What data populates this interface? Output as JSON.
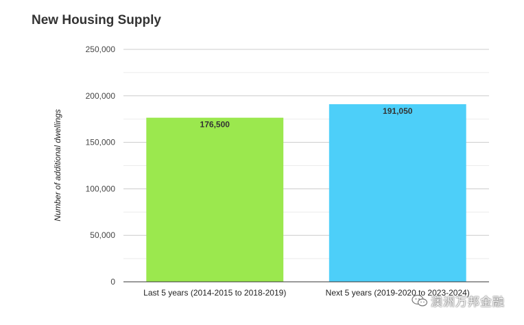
{
  "chart_data": {
    "type": "bar",
    "title": "New Housing Supply",
    "ylabel": "Number of additional dwellings",
    "xlabel": "",
    "categories": [
      "Last 5 years (2014-2015 to 2018-2019)",
      "Next 5 years (2019-2020 to 2023-2024)"
    ],
    "values": [
      176500,
      191050
    ],
    "data_labels": [
      "176,500",
      "191,050"
    ],
    "bar_colors": [
      "#9be84e",
      "#4dcff9"
    ],
    "ylim": [
      0,
      250000
    ],
    "yticks": [
      0,
      50000,
      100000,
      150000,
      200000,
      250000
    ],
    "ytick_labels": [
      "0",
      "50,000",
      "100,000",
      "150,000",
      "200,000",
      "250,000"
    ],
    "grid": true,
    "legend": "none"
  },
  "watermark": {
    "text": "澳洲万邦金融",
    "icon": "wechat-icon"
  }
}
